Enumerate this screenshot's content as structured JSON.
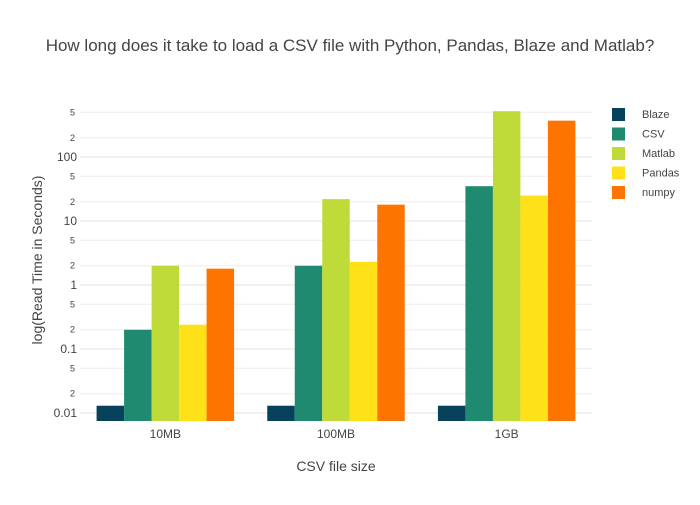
{
  "chart_data": {
    "type": "bar",
    "title": "How long does it take to load a CSV file with Python, Pandas, Blaze and Matlab?",
    "xlabel": "CSV file size",
    "ylabel": "log(Read Time in Seconds)",
    "yscale": "log",
    "ylim": [
      0.0075,
      650
    ],
    "grid": true,
    "legend_position": "right",
    "categories": [
      "10MB",
      "100MB",
      "1GB"
    ],
    "y_major_ticks": [
      {
        "value": 0.01,
        "label": "0.01"
      },
      {
        "value": 0.1,
        "label": "0.1"
      },
      {
        "value": 1,
        "label": "1"
      },
      {
        "value": 10,
        "label": "10"
      },
      {
        "value": 100,
        "label": "100"
      }
    ],
    "y_minor_ticks": [
      {
        "value": 0.02,
        "label": "2"
      },
      {
        "value": 0.05,
        "label": "5"
      },
      {
        "value": 0.2,
        "label": "2"
      },
      {
        "value": 0.5,
        "label": "5"
      },
      {
        "value": 2,
        "label": "2"
      },
      {
        "value": 5,
        "label": "5"
      },
      {
        "value": 20,
        "label": "2"
      },
      {
        "value": 50,
        "label": "5"
      },
      {
        "value": 200,
        "label": "2"
      },
      {
        "value": 500,
        "label": "5"
      }
    ],
    "series": [
      {
        "name": "Blaze",
        "color": "#08415c",
        "values": [
          0.013,
          0.013,
          0.013
        ]
      },
      {
        "name": "CSV",
        "color": "#1f8a70",
        "values": [
          0.2,
          2.0,
          35
        ]
      },
      {
        "name": "Matlab",
        "color": "#bedb39",
        "values": [
          2.0,
          22,
          520
        ]
      },
      {
        "name": "Pandas",
        "color": "#ffe11a",
        "values": [
          0.24,
          2.3,
          25
        ]
      },
      {
        "name": "numpy",
        "color": "#fd7400",
        "values": [
          1.8,
          18,
          370
        ]
      }
    ]
  }
}
